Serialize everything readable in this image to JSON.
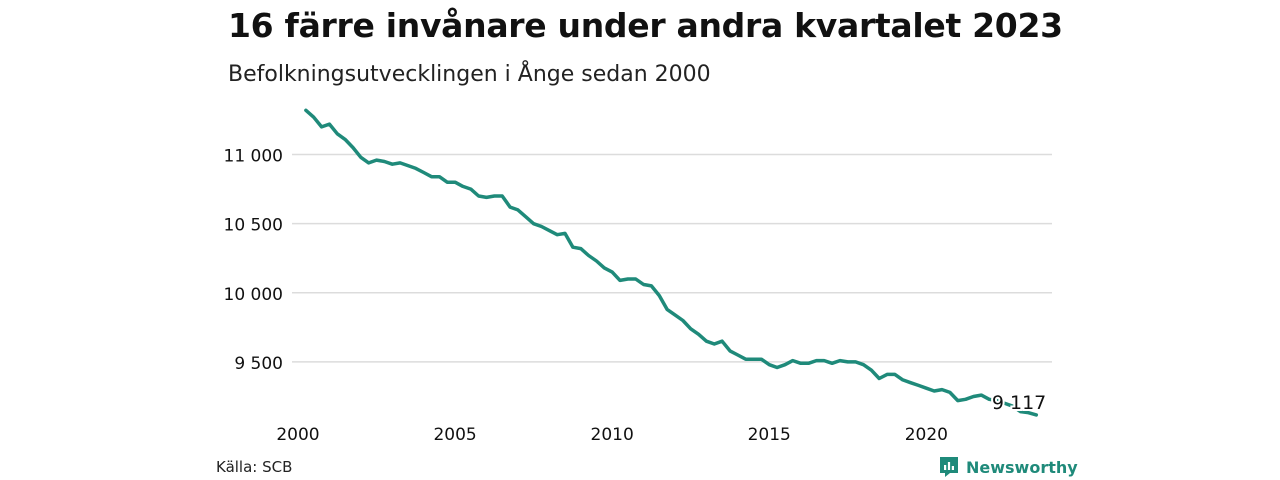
{
  "chart_data": {
    "type": "line",
    "title": "16 färre invånare under andra kvartalet 2023",
    "subtitle": "Befolkningsutvecklingen i Ånge sedan 2000",
    "xlabel": "",
    "ylabel": "",
    "xlim": [
      2000,
      2024
    ],
    "ylim": [
      9080,
      11250
    ],
    "y_ticks": [
      9500,
      10000,
      10500,
      11000
    ],
    "y_tick_labels": [
      "9 500",
      "10 000",
      "10 500",
      "11 000"
    ],
    "x_ticks": [
      2000,
      2005,
      2010,
      2015,
      2020
    ],
    "x_tick_labels": [
      "2000",
      "2005",
      "2010",
      "2015",
      "2020"
    ],
    "grid": "horizontal",
    "legend": "none",
    "line_color": "#1f8a7a",
    "end_label": "9 117",
    "series": [
      {
        "x": [
          2000.25,
          2000.5,
          2000.75,
          2001.0,
          2001.25,
          2001.5,
          2001.75,
          2002.0,
          2002.25,
          2002.5,
          2002.75,
          2003.0,
          2003.25,
          2003.5,
          2003.75,
          2004.0,
          2004.25,
          2004.5,
          2004.75,
          2005.0,
          2005.25,
          2005.5,
          2005.75,
          2006.0,
          2006.25,
          2006.5,
          2006.75,
          2007.0,
          2007.25,
          2007.5,
          2007.75,
          2008.0,
          2008.25,
          2008.5,
          2008.75,
          2009.0,
          2009.25,
          2009.5,
          2009.75,
          2010.0,
          2010.25,
          2010.5,
          2010.75,
          2011.0,
          2011.25,
          2011.5,
          2011.75,
          2012.0,
          2012.25,
          2012.5,
          2012.75,
          2013.0,
          2013.25,
          2013.5,
          2013.75,
          2014.0,
          2014.25,
          2014.5,
          2014.75,
          2015.0,
          2015.25,
          2015.5,
          2015.75,
          2016.0,
          2016.25,
          2016.5,
          2016.75,
          2017.0,
          2017.25,
          2017.5,
          2017.75,
          2018.0,
          2018.25,
          2018.5,
          2018.75,
          2019.0,
          2019.25,
          2019.5,
          2019.75,
          2020.0,
          2020.25,
          2020.5,
          2020.75,
          2021.0,
          2021.25,
          2021.5,
          2021.75,
          2022.0,
          2022.25,
          2022.5,
          2022.75,
          2023.0,
          2023.25,
          2023.5
        ],
        "y": [
          11320,
          11270,
          11200,
          11220,
          11150,
          11110,
          11050,
          10980,
          10940,
          10960,
          10950,
          10930,
          10940,
          10920,
          10900,
          10870,
          10840,
          10840,
          10800,
          10800,
          10770,
          10750,
          10700,
          10690,
          10700,
          10700,
          10620,
          10600,
          10550,
          10500,
          10480,
          10450,
          10420,
          10430,
          10330,
          10320,
          10270,
          10230,
          10180,
          10150,
          10090,
          10100,
          10100,
          10060,
          10050,
          9980,
          9880,
          9840,
          9800,
          9740,
          9700,
          9650,
          9630,
          9650,
          9580,
          9550,
          9520,
          9520,
          9520,
          9480,
          9460,
          9480,
          9510,
          9490,
          9490,
          9510,
          9510,
          9490,
          9510,
          9500,
          9500,
          9480,
          9440,
          9380,
          9410,
          9410,
          9370,
          9350,
          9330,
          9310,
          9290,
          9300,
          9280,
          9220,
          9230,
          9250,
          9260,
          9230,
          9220,
          9200,
          9180,
          9140,
          9133,
          9117
        ]
      }
    ]
  },
  "footer": {
    "source": "Källa: SCB",
    "brand": "Newsworthy"
  }
}
